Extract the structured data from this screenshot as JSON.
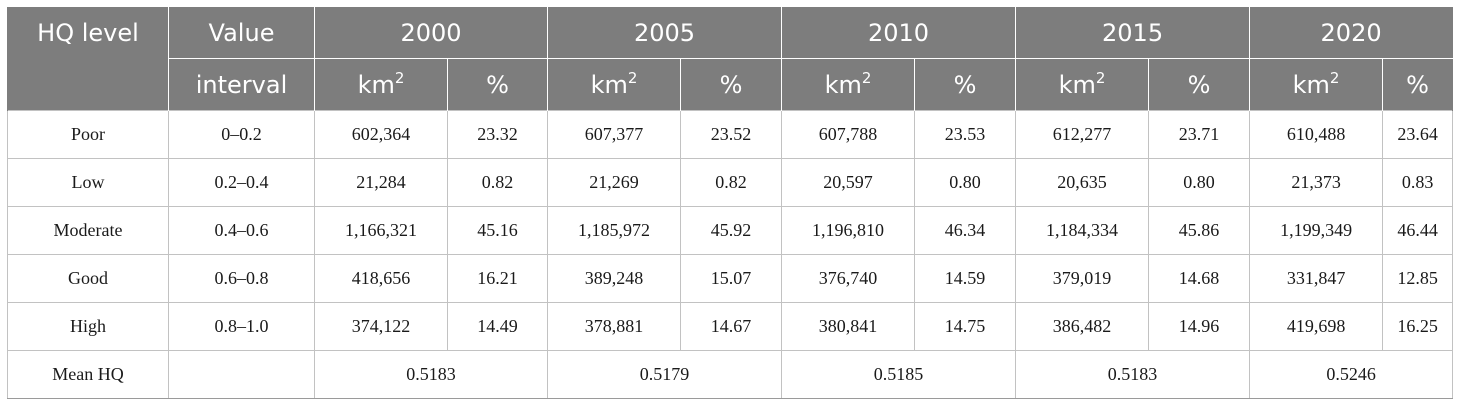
{
  "header": {
    "col_hq_level": "HQ level",
    "col_value_top": "Value",
    "col_value_bottom": "interval",
    "years": [
      "2000",
      "2005",
      "2010",
      "2015",
      "2020"
    ],
    "unit_area_base": "km",
    "unit_area_exp": "2",
    "unit_percent": "%"
  },
  "rows": [
    {
      "level": "Poor",
      "interval": "0–0.2",
      "cells": [
        [
          "602,364",
          "23.32"
        ],
        [
          "607,377",
          "23.52"
        ],
        [
          "607,788",
          "23.53"
        ],
        [
          "612,277",
          "23.71"
        ],
        [
          "610,488",
          "23.64"
        ]
      ]
    },
    {
      "level": "Low",
      "interval": "0.2–0.4",
      "cells": [
        [
          "21,284",
          "0.82"
        ],
        [
          "21,269",
          "0.82"
        ],
        [
          "20,597",
          "0.80"
        ],
        [
          "20,635",
          "0.80"
        ],
        [
          "21,373",
          "0.83"
        ]
      ]
    },
    {
      "level": "Moderate",
      "interval": "0.4–0.6",
      "cells": [
        [
          "1,166,321",
          "45.16"
        ],
        [
          "1,185,972",
          "45.92"
        ],
        [
          "1,196,810",
          "46.34"
        ],
        [
          "1,184,334",
          "45.86"
        ],
        [
          "1,199,349",
          "46.44"
        ]
      ]
    },
    {
      "level": "Good",
      "interval": "0.6–0.8",
      "cells": [
        [
          "418,656",
          "16.21"
        ],
        [
          "389,248",
          "15.07"
        ],
        [
          "376,740",
          "14.59"
        ],
        [
          "379,019",
          "14.68"
        ],
        [
          "331,847",
          "12.85"
        ]
      ]
    },
    {
      "level": "High",
      "interval": "0.8–1.0",
      "cells": [
        [
          "374,122",
          "14.49"
        ],
        [
          "378,881",
          "14.67"
        ],
        [
          "380,841",
          "14.75"
        ],
        [
          "386,482",
          "14.96"
        ],
        [
          "419,698",
          "16.25"
        ]
      ]
    }
  ],
  "mean_row": {
    "label": "Mean HQ",
    "interval": "",
    "values": [
      "0.5183",
      "0.5179",
      "0.5185",
      "0.5183",
      "0.5246"
    ]
  }
}
